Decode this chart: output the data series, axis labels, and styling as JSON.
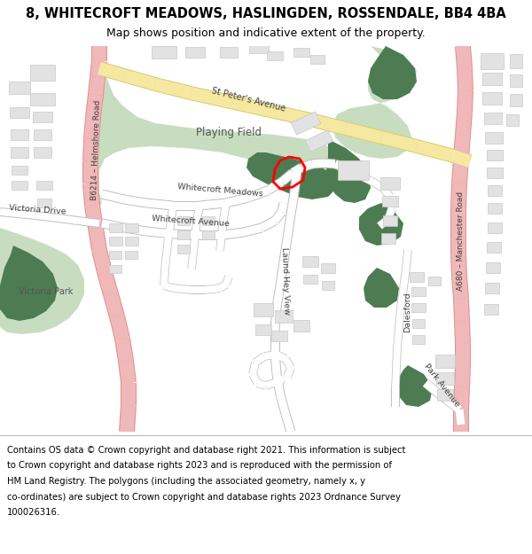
{
  "title_line1": "8, WHITECROFT MEADOWS, HASLINGDEN, ROSSENDALE, BB4 4BA",
  "title_line2": "Map shows position and indicative extent of the property.",
  "bg_color": "#ffffff",
  "map_bg": "#ffffff",
  "green_light": "#c8ddc0",
  "green_dark": "#4d7c52",
  "building_color": "#e2e2e2",
  "building_stroke": "#c8c8c8",
  "plot_color": "#ff0000",
  "road_A_color": "#f0b8b8",
  "road_A_stroke": "#e09090",
  "road_yellow_fill": "#f5e8a0",
  "road_yellow_stroke": "#d8cc70",
  "road_white": "#ffffff",
  "road_gray_stroke": "#c0c0c0",
  "title_fontsize": 10.5,
  "subtitle_fontsize": 9,
  "footer_fontsize": 7.2,
  "text_color": "#404040",
  "footer_lines": [
    "Contains OS data © Crown copyright and database right 2021. This information is subject",
    "to Crown copyright and database rights 2023 and is reproduced with the permission of",
    "HM Land Registry. The polygons (including the associated geometry, namely x, y",
    "co-ordinates) are subject to Crown copyright and database rights 2023 Ordnance Survey",
    "100026316."
  ]
}
